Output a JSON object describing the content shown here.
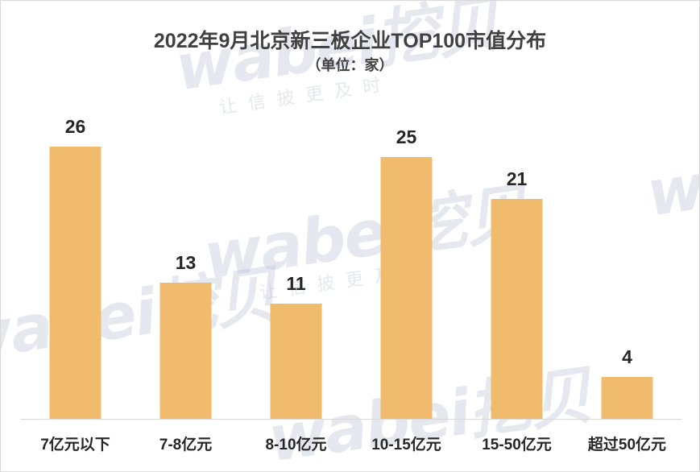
{
  "chart_data": {
    "type": "bar",
    "title": "2022年9月北京新三板企业TOP100市值分布",
    "subtitle": "（单位：家）",
    "categories": [
      "7亿元以下",
      "7-8亿元",
      "8-10亿元",
      "10-15亿元",
      "15-50亿元",
      "超过50亿元"
    ],
    "values": [
      26,
      13,
      11,
      25,
      21,
      4
    ],
    "ylim": [
      0,
      30
    ],
    "grid": false,
    "bar_color": "#f0bb6d",
    "axis_color": "#d9d9d9"
  },
  "watermark": {
    "brand": "wabei挖贝",
    "slogan": "让信披更及时"
  }
}
